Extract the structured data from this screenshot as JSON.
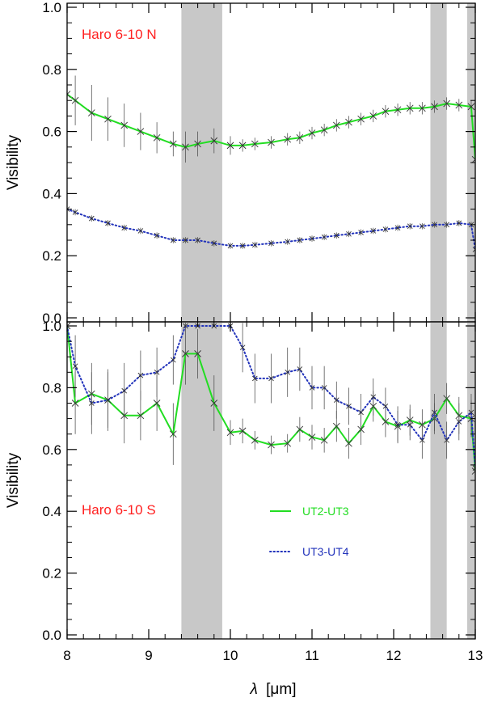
{
  "chart_data": [
    {
      "type": "line",
      "panel": "top",
      "label": "Haro 6-10 N",
      "label_color": "#ff2020",
      "ylabel": "Visibility",
      "ylim": [
        0.0,
        1.0
      ],
      "xlim": [
        8,
        13
      ],
      "yticks": [
        "0.0",
        "0.2",
        "0.4",
        "0.6",
        "0.8",
        "1.0"
      ],
      "shaded_bands": [
        [
          9.4,
          9.9
        ],
        [
          12.45,
          12.65
        ],
        [
          12.9,
          13.0
        ]
      ],
      "series": [
        {
          "name": "UT2-UT3",
          "color": "#22dd22",
          "style": "solid",
          "x": [
            8.0,
            8.1,
            8.3,
            8.5,
            8.7,
            8.9,
            9.1,
            9.3,
            9.45,
            9.6,
            9.8,
            10.0,
            10.15,
            10.3,
            10.5,
            10.7,
            10.85,
            11.0,
            11.15,
            11.3,
            11.45,
            11.6,
            11.75,
            11.9,
            12.05,
            12.2,
            12.35,
            12.5,
            12.65,
            12.8,
            12.95,
            13.0
          ],
          "y": [
            0.72,
            0.7,
            0.66,
            0.64,
            0.62,
            0.6,
            0.58,
            0.56,
            0.55,
            0.56,
            0.57,
            0.555,
            0.555,
            0.56,
            0.565,
            0.575,
            0.58,
            0.595,
            0.605,
            0.62,
            0.63,
            0.64,
            0.65,
            0.665,
            0.67,
            0.675,
            0.675,
            0.68,
            0.69,
            0.685,
            0.68,
            0.51
          ],
          "err": [
            0.05,
            0.08,
            0.09,
            0.07,
            0.07,
            0.06,
            0.05,
            0.04,
            0.05,
            0.04,
            0.04,
            0.03,
            0.02,
            0.02,
            0.02,
            0.02,
            0.02,
            0.02,
            0.02,
            0.02,
            0.02,
            0.02,
            0.02,
            0.02,
            0.02,
            0.02,
            0.02,
            0.02,
            0.02,
            0.02,
            0.02,
            0.0
          ]
        },
        {
          "name": "UT3-UT4",
          "color": "#2233bb",
          "style": "dotted",
          "x": [
            8.0,
            8.1,
            8.3,
            8.5,
            8.7,
            8.9,
            9.1,
            9.3,
            9.45,
            9.6,
            9.8,
            10.0,
            10.15,
            10.3,
            10.5,
            10.7,
            10.85,
            11.0,
            11.15,
            11.3,
            11.45,
            11.6,
            11.75,
            11.9,
            12.05,
            12.2,
            12.35,
            12.5,
            12.65,
            12.8,
            12.95,
            13.0
          ],
          "y": [
            0.35,
            0.34,
            0.32,
            0.305,
            0.29,
            0.28,
            0.265,
            0.25,
            0.25,
            0.25,
            0.24,
            0.232,
            0.232,
            0.235,
            0.24,
            0.245,
            0.25,
            0.255,
            0.26,
            0.265,
            0.27,
            0.275,
            0.28,
            0.285,
            0.29,
            0.295,
            0.295,
            0.3,
            0.3,
            0.305,
            0.3,
            0.22
          ],
          "err": [
            0.01,
            0.01,
            0.01,
            0.01,
            0.01,
            0.01,
            0.01,
            0.01,
            0.01,
            0.01,
            0.01,
            0.01,
            0.01,
            0.01,
            0.01,
            0.01,
            0.01,
            0.01,
            0.01,
            0.01,
            0.01,
            0.01,
            0.01,
            0.01,
            0.01,
            0.01,
            0.01,
            0.01,
            0.01,
            0.01,
            0.01,
            0.0
          ]
        }
      ]
    },
    {
      "type": "line",
      "panel": "bottom",
      "label": "Haro 6-10 S",
      "label_color": "#ff2020",
      "ylabel": "Visibility",
      "xlabel_prefix": "λ",
      "xlabel_unit": "[μm]",
      "ylim": [
        0.0,
        1.0
      ],
      "xlim": [
        8,
        13
      ],
      "xticks": [
        "8",
        "9",
        "10",
        "11",
        "12",
        "13"
      ],
      "yticks": [
        "0.0",
        "0.2",
        "0.4",
        "0.6",
        "0.8",
        "1.0"
      ],
      "shaded_bands": [
        [
          9.4,
          9.9
        ],
        [
          12.45,
          12.65
        ],
        [
          12.9,
          13.0
        ]
      ],
      "legend": {
        "placement": "center-right",
        "entries": [
          {
            "label": "UT2-UT3",
            "color": "#22dd22",
            "style": "solid"
          },
          {
            "label": "UT3-UT4",
            "color": "#2233bb",
            "style": "dotted"
          }
        ]
      },
      "series": [
        {
          "name": "UT2-UT3",
          "color": "#22dd22",
          "style": "solid",
          "x": [
            8.0,
            8.1,
            8.3,
            8.5,
            8.7,
            8.9,
            9.1,
            9.3,
            9.45,
            9.6,
            9.8,
            10.0,
            10.15,
            10.3,
            10.5,
            10.7,
            10.85,
            11.0,
            11.15,
            11.3,
            11.45,
            11.6,
            11.75,
            11.9,
            12.05,
            12.2,
            12.35,
            12.5,
            12.65,
            12.8,
            12.95,
            13.0
          ],
          "y": [
            1.0,
            0.75,
            0.78,
            0.76,
            0.71,
            0.71,
            0.75,
            0.65,
            0.91,
            0.91,
            0.75,
            0.655,
            0.66,
            0.63,
            0.615,
            0.62,
            0.665,
            0.64,
            0.63,
            0.675,
            0.62,
            0.665,
            0.74,
            0.69,
            0.675,
            0.695,
            0.68,
            0.7,
            0.765,
            0.71,
            0.7,
            0.53
          ],
          "err": [
            0.0,
            0.1,
            0.1,
            0.1,
            0.09,
            0.08,
            0.09,
            0.1,
            0.1,
            0.08,
            0.09,
            0.04,
            0.04,
            0.03,
            0.03,
            0.03,
            0.04,
            0.04,
            0.04,
            0.05,
            0.05,
            0.05,
            0.05,
            0.05,
            0.05,
            0.05,
            0.05,
            0.05,
            0.05,
            0.06,
            0.06,
            0.0
          ]
        },
        {
          "name": "UT3-UT4",
          "color": "#2233bb",
          "style": "dotted",
          "x": [
            8.0,
            8.1,
            8.3,
            8.5,
            8.7,
            8.9,
            9.1,
            9.3,
            9.45,
            9.6,
            9.8,
            10.0,
            10.15,
            10.3,
            10.5,
            10.7,
            10.85,
            11.0,
            11.15,
            11.3,
            11.45,
            11.6,
            11.75,
            11.9,
            12.05,
            12.2,
            12.35,
            12.5,
            12.65,
            12.8,
            12.95,
            13.0
          ],
          "y": [
            1.0,
            0.87,
            0.75,
            0.76,
            0.79,
            0.84,
            0.85,
            0.89,
            1.0,
            1.0,
            1.0,
            1.0,
            0.93,
            0.83,
            0.83,
            0.85,
            0.86,
            0.8,
            0.8,
            0.76,
            0.74,
            0.72,
            0.77,
            0.74,
            0.68,
            0.68,
            0.63,
            0.72,
            0.63,
            0.69,
            0.72,
            0.54
          ],
          "err": [
            0.0,
            0.1,
            0.1,
            0.09,
            0.09,
            0.08,
            0.08,
            0.08,
            0.0,
            0.0,
            0.0,
            0.0,
            0.08,
            0.08,
            0.08,
            0.08,
            0.07,
            0.07,
            0.07,
            0.06,
            0.06,
            0.06,
            0.06,
            0.06,
            0.06,
            0.05,
            0.06,
            0.06,
            0.06,
            0.06,
            0.06,
            0.0
          ]
        }
      ]
    }
  ]
}
